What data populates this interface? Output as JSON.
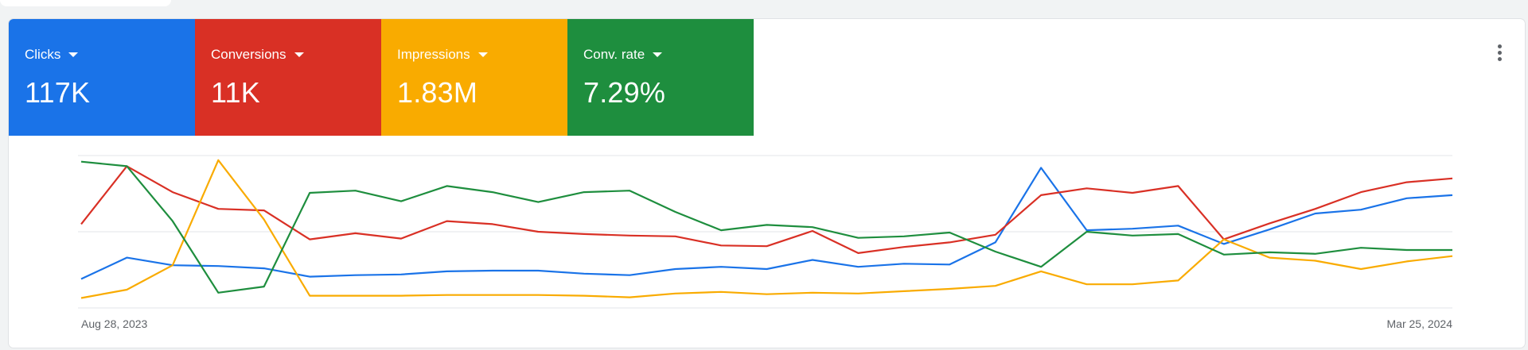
{
  "metrics": [
    {
      "label": "Clicks",
      "value": "117K",
      "color": "#1a73e8"
    },
    {
      "label": "Conversions",
      "value": "11K",
      "color": "#d93025"
    },
    {
      "label": "Impressions",
      "value": "1.83M",
      "color": "#f9ab00"
    },
    {
      "label": "Conv. rate",
      "value": "7.29%",
      "color": "#1e8e3e"
    }
  ],
  "icons": {
    "more": "more-vert-icon",
    "dropdown": "caret-down-icon"
  },
  "chart_data": {
    "type": "line",
    "x_start_label": "Aug 28, 2023",
    "x_end_label": "Mar 25, 2024",
    "grid": true,
    "ylim": [
      0,
      100
    ],
    "series": [
      {
        "color": "#1a73e8",
        "values": [
          19,
          33,
          28,
          27.5,
          26,
          20.5,
          21.5,
          22,
          24,
          24.5,
          24.5,
          22.5,
          21.5,
          25.5,
          27,
          25.5,
          31.5,
          27,
          29,
          28.5,
          43,
          92,
          51,
          52,
          54,
          42,
          51.5,
          62,
          64.5,
          72,
          74
        ]
      },
      {
        "color": "#d93025",
        "values": [
          55,
          93,
          76,
          65,
          64,
          45,
          49,
          45.5,
          57,
          55,
          50,
          48.5,
          47.5,
          47,
          41,
          40.5,
          50.5,
          36,
          40,
          43,
          48,
          74,
          78.5,
          75.5,
          80,
          45,
          55.5,
          65,
          76,
          82.5,
          85
        ]
      },
      {
        "color": "#f9ab00",
        "values": [
          6.5,
          12,
          28,
          97,
          58,
          8,
          8,
          8,
          8.5,
          8.5,
          8.5,
          8,
          7,
          9.5,
          10.5,
          9,
          10,
          9.5,
          11,
          12.5,
          14.5,
          24,
          15.5,
          15.5,
          18,
          45,
          33,
          31,
          25.5,
          30.5,
          34
        ]
      },
      {
        "color": "#1e8e3e",
        "values": [
          96,
          93,
          57,
          10,
          14,
          75.5,
          77,
          70,
          80,
          76,
          69.5,
          76,
          77,
          63,
          51,
          54.5,
          53,
          46,
          47,
          49.5,
          37,
          27,
          50,
          47.5,
          48.5,
          35,
          36.5,
          35.5,
          39.5,
          38,
          38
        ]
      }
    ]
  }
}
